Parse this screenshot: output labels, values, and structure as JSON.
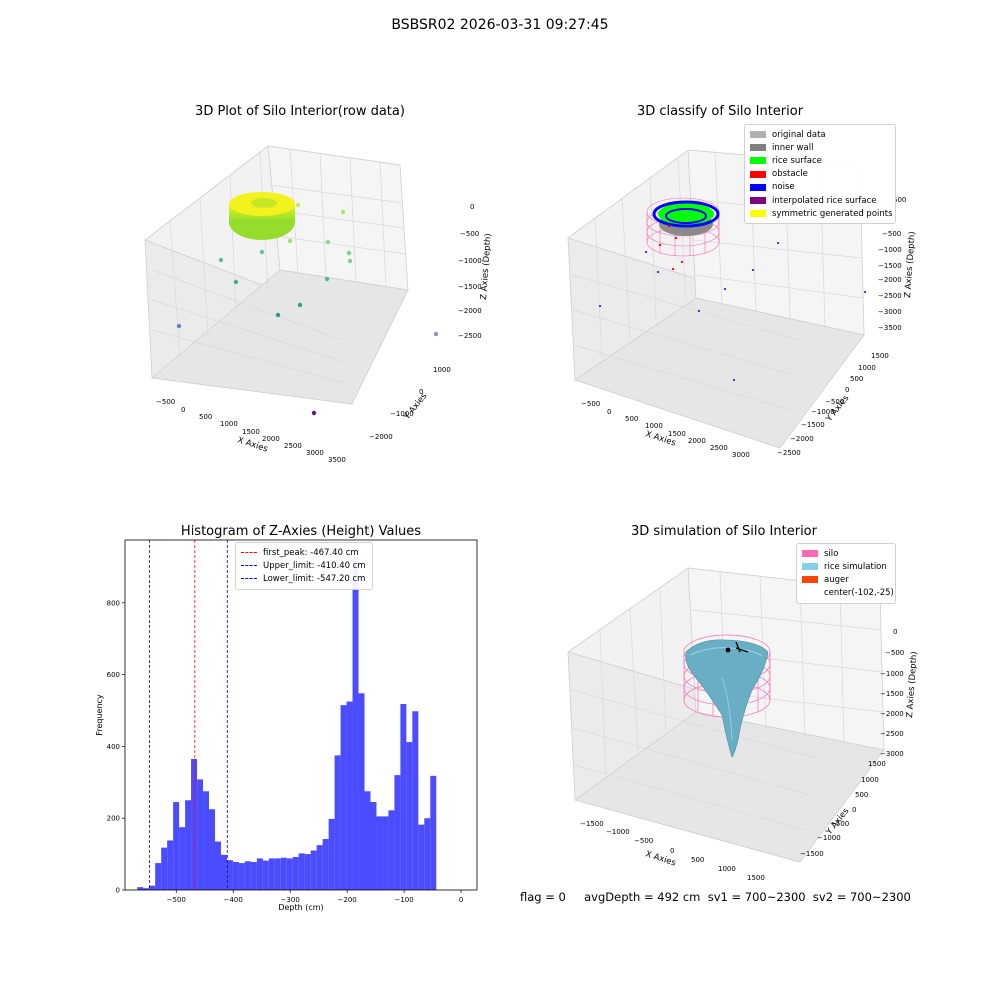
{
  "figure": {
    "suptitle": "BSBSR02 2026-03-31 09:27:45",
    "status_line": "flag = 0     avgDepth = 492 cm  sv1 = 700~2300  sv2 = 700~2300"
  },
  "panels": {
    "raw": {
      "title": "3D Plot of Silo Interior(row data)",
      "xlabel": "X Axies",
      "ylabel": "Y Axies",
      "zlabel": "Z Axies (Depth)",
      "xticks": [
        "−500",
        "0",
        "500",
        "1000",
        "1500",
        "2000",
        "2500",
        "3000",
        "3500"
      ],
      "yticks": [
        "−2000",
        "−1000",
        "0",
        "1000"
      ],
      "zticks": [
        "0",
        "−500",
        "−1000",
        "−1500",
        "−2000",
        "−2500"
      ]
    },
    "classify": {
      "title": "3D classify of Silo Interior",
      "xlabel": "X Axies",
      "ylabel": "Y Axies",
      "zlabel": "Z Axies (Depth)",
      "xticks": [
        "−500",
        "0",
        "500",
        "1000",
        "1500",
        "2000",
        "2500",
        "3000"
      ],
      "yticks": [
        "−2500",
        "−2000",
        "−1500",
        "−1000",
        "−500",
        "0",
        "500",
        "1000",
        "1500"
      ],
      "zticks": [
        "−500",
        "−1000",
        "−1500",
        "−2000",
        "−2500",
        "−3000",
        "−3500"
      ],
      "ztick_top": "500",
      "legend": [
        {
          "label": "original data",
          "color": "#b0b0b0"
        },
        {
          "label": "inner wall",
          "color": "#808080"
        },
        {
          "label": "rice surface",
          "color": "#00ff00"
        },
        {
          "label": "obstacle",
          "color": "#ff0000"
        },
        {
          "label": "noise",
          "color": "#0000ff"
        },
        {
          "label": "interpolated rice surface",
          "color": "#800080"
        },
        {
          "label": "symmetric generated points",
          "color": "#ffff00"
        }
      ]
    },
    "simulation": {
      "title": "3D simulation of Silo Interior",
      "xlabel": "X Axies",
      "ylabel": "Y Axies",
      "zlabel": "Z Axies (Depth)",
      "xticks": [
        "−1500",
        "−1000",
        "−500",
        "0",
        "500",
        "1000",
        "1500"
      ],
      "yticks": [
        "−1500",
        "−1000",
        "−500",
        "0",
        "500",
        "1000",
        "1500"
      ],
      "zticks": [
        "0",
        "−500",
        "−1000",
        "−1500",
        "−2000",
        "−2500",
        "−3000"
      ],
      "legend": [
        {
          "label": "silo",
          "color": "#ff69b4"
        },
        {
          "label": "rice simulation",
          "color": "#87ceeb"
        },
        {
          "label": "auger",
          "color": "#ff4500"
        },
        {
          "label": "center(-102,-25)",
          "color": "#ffffff"
        }
      ]
    }
  },
  "chart_data": {
    "type": "bar",
    "title": "Histogram of Z-Axies (Height) Values",
    "xlabel": "Depth (cm)",
    "ylabel": "Frequency",
    "xlim": [
      -590,
      28
    ],
    "ylim": [
      0,
      975
    ],
    "xticks": [
      -500,
      -400,
      -300,
      -200,
      -100,
      0
    ],
    "yticks": [
      0,
      200,
      400,
      600,
      800
    ],
    "bin_start": -568.5,
    "bin_width": 10.5,
    "color": "#4b4bff",
    "values": [
      8,
      5,
      12,
      75,
      118,
      138,
      245,
      175,
      250,
      365,
      308,
      275,
      225,
      135,
      98,
      83,
      78,
      75,
      80,
      78,
      88,
      82,
      88,
      88,
      90,
      88,
      92,
      102,
      100,
      110,
      125,
      142,
      198,
      375,
      515,
      525,
      928,
      548,
      275,
      245,
      205,
      205,
      222,
      320,
      518,
      412,
      498,
      182,
      200,
      318
    ],
    "vlines": [
      {
        "label": "first_peak: -467.40 cm",
        "x": -467.4,
        "color": "#ff0000"
      },
      {
        "label": "Upper_limit: -410.40 cm",
        "x": -410.4,
        "color": "#0000cc"
      },
      {
        "label": "Lower_limit: -547.20 cm",
        "x": -547.2,
        "color": "#0000cc"
      }
    ]
  }
}
